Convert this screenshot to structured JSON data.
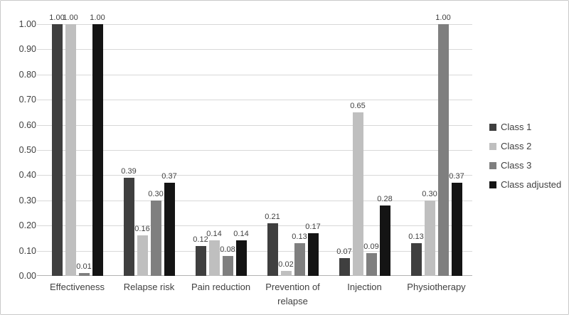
{
  "chart_data": {
    "type": "bar",
    "title": "",
    "xlabel": "",
    "ylabel": "",
    "categories": [
      "Effectiveness",
      "Relapse risk",
      "Pain reduction",
      "Prevention of relapse",
      "Injection",
      "Physiotherapy"
    ],
    "series": [
      {
        "name": "Class 1",
        "color": "#3f3f3f",
        "values": [
          1.0,
          0.39,
          0.12,
          0.21,
          0.07,
          0.13
        ]
      },
      {
        "name": "Class 2",
        "color": "#bfbfbf",
        "values": [
          1.0,
          0.16,
          0.14,
          0.02,
          0.65,
          0.3
        ]
      },
      {
        "name": "Class 3",
        "color": "#7f7f7f",
        "values": [
          0.01,
          0.3,
          0.08,
          0.13,
          0.09,
          1.0
        ]
      },
      {
        "name": "Class adjusted",
        "color": "#141414",
        "values": [
          1.0,
          0.37,
          0.14,
          0.17,
          0.28,
          0.37
        ]
      }
    ],
    "y_axis": {
      "min": 0,
      "max": 1,
      "step": 0.1,
      "tick_labels": [
        "0.00",
        "0.10",
        "0.20",
        "0.30",
        "0.40",
        "0.50",
        "0.60",
        "0.70",
        "0.80",
        "0.90",
        "1.00"
      ]
    },
    "value_labels_shown": true,
    "value_label_decimals": 2,
    "grid": true,
    "legend_position": "right",
    "colors": {
      "gridline": "#d8d8d8",
      "axis_line": "#b3b3b3",
      "text": "#404040"
    }
  }
}
